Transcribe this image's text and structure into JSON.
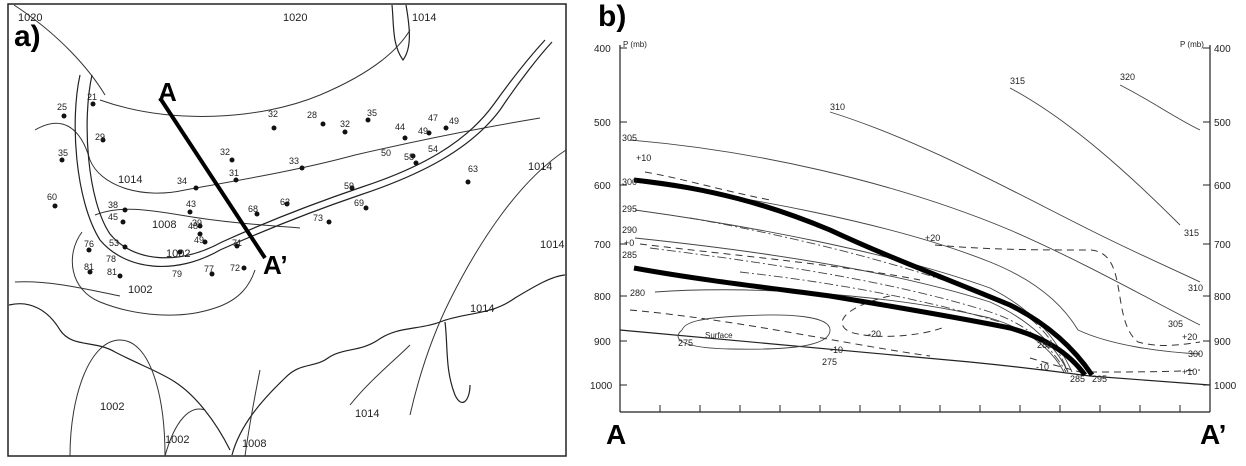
{
  "panel_a": {
    "label": "a)",
    "section_start": "A",
    "section_end": "A’",
    "isobars": [
      "1020",
      "1020",
      "1014",
      "1014",
      "1014",
      "1014",
      "1008",
      "1008",
      "1002",
      "1002",
      "1002",
      "1002",
      "1014",
      "1014"
    ],
    "stations": [
      "25",
      "21",
      "29",
      "35",
      "60",
      "32",
      "28",
      "32",
      "35",
      "44",
      "47",
      "49",
      "49",
      "50",
      "58",
      "54",
      "63",
      "33",
      "32",
      "31",
      "34",
      "38",
      "45",
      "43",
      "48",
      "39",
      "49",
      "53",
      "76",
      "78",
      "81",
      "81",
      "79",
      "77",
      "72",
      "71",
      "68",
      "63",
      "59",
      "69",
      "73"
    ]
  },
  "panel_b": {
    "label": "b)",
    "axis_left_title": "P (mb)",
    "axis_right_title": "P (mb)",
    "pressure_ticks": [
      "400",
      "500",
      "600",
      "700",
      "800",
      "900",
      "1000"
    ],
    "theta_labels": [
      "310",
      "315",
      "320",
      "305",
      "300",
      "295",
      "290",
      "285",
      "280",
      "275",
      "275",
      "280",
      "285",
      "295",
      "315",
      "310",
      "305",
      "300"
    ],
    "temp_labels": [
      "+10",
      "+0",
      "+20",
      "-20",
      "-10",
      "+20",
      "+10",
      "-10"
    ],
    "surface_label": "Surface",
    "section_start": "A",
    "section_end": "A’"
  }
}
